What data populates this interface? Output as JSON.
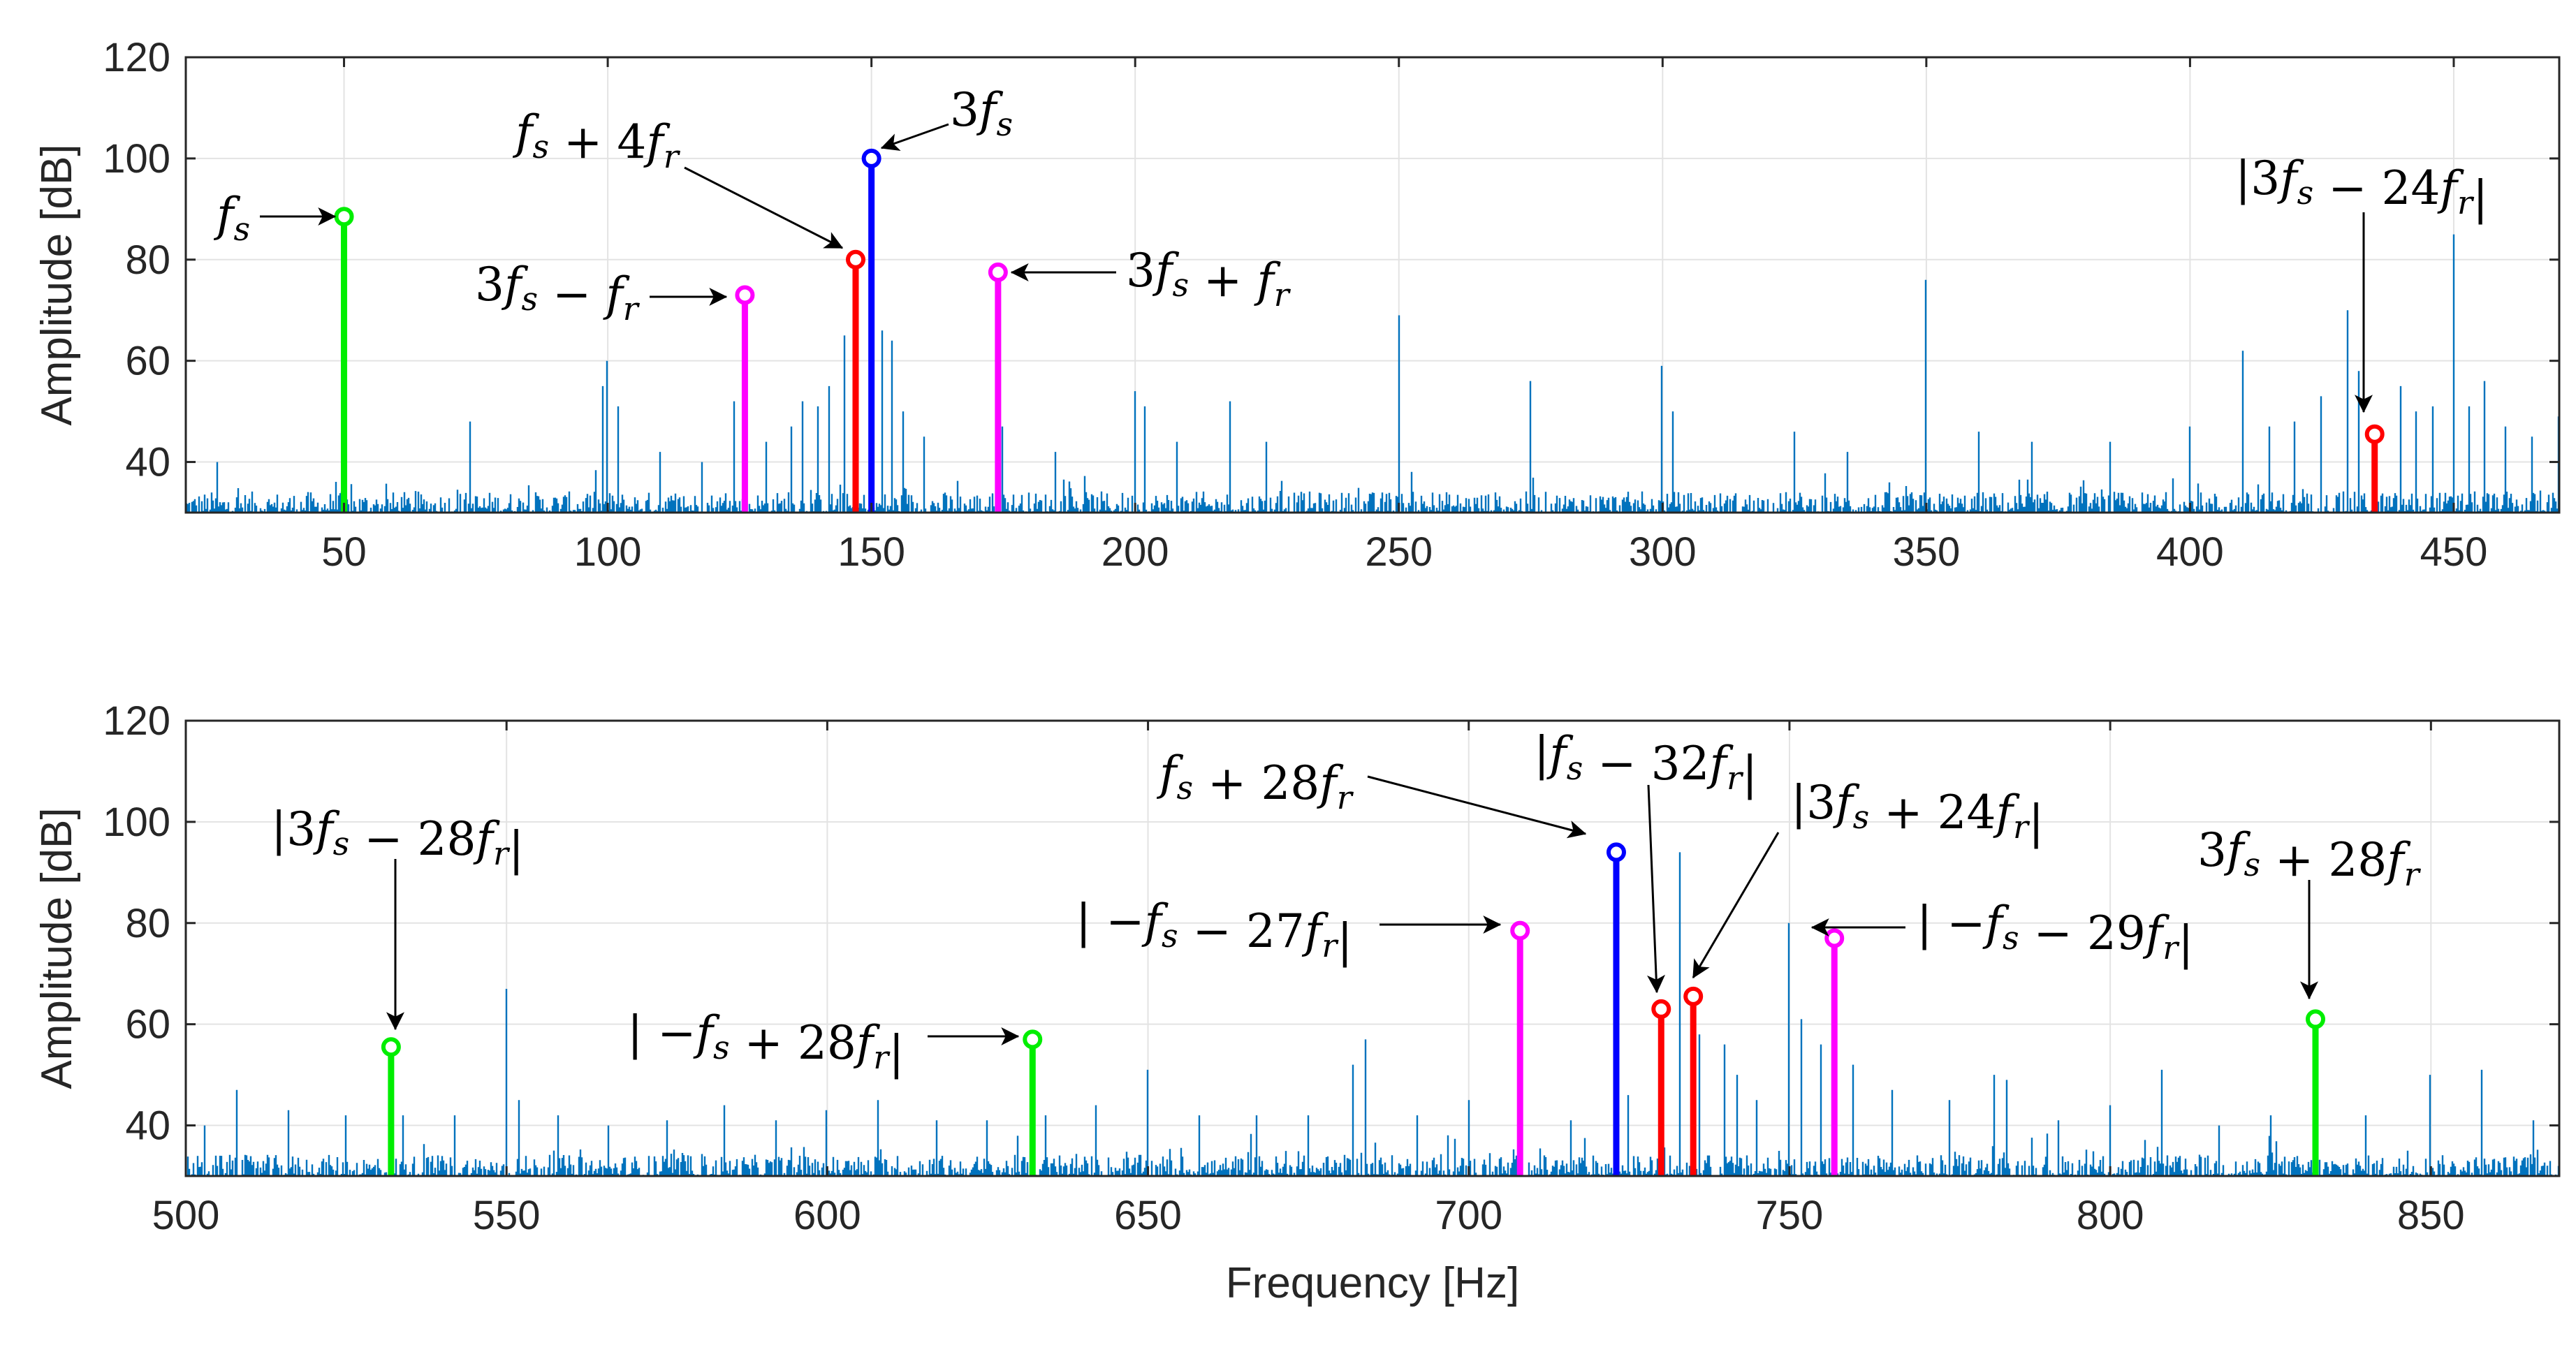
{
  "chart_data": [
    {
      "type": "line",
      "panel": "top",
      "title": "",
      "xlabel": "",
      "ylabel": "Amplitude [dB]",
      "xlim": [
        20,
        470
      ],
      "ylim": [
        30,
        120
      ],
      "grid": true,
      "xticks": [
        50,
        100,
        150,
        200,
        250,
        300,
        350,
        400,
        450
      ],
      "yticks": [
        40,
        60,
        80,
        100,
        120
      ],
      "line_color": "#0072BD",
      "noise_floor_db": 30,
      "spectrum_peaks": [
        {
          "x": 26,
          "y": 40
        },
        {
          "x": 50,
          "y": 41
        },
        {
          "x": 74,
          "y": 48
        },
        {
          "x": 100,
          "y": 60
        },
        {
          "x": 99,
          "y": 55
        },
        {
          "x": 102,
          "y": 51
        },
        {
          "x": 110,
          "y": 42
        },
        {
          "x": 118,
          "y": 40
        },
        {
          "x": 124,
          "y": 52
        },
        {
          "x": 130,
          "y": 44
        },
        {
          "x": 135,
          "y": 47
        },
        {
          "x": 137,
          "y": 52
        },
        {
          "x": 140,
          "y": 51
        },
        {
          "x": 142,
          "y": 55
        },
        {
          "x": 145,
          "y": 65
        },
        {
          "x": 152,
          "y": 66
        },
        {
          "x": 154,
          "y": 64
        },
        {
          "x": 156,
          "y": 50
        },
        {
          "x": 160,
          "y": 45
        },
        {
          "x": 175,
          "y": 47
        },
        {
          "x": 185,
          "y": 42
        },
        {
          "x": 200,
          "y": 54
        },
        {
          "x": 202,
          "y": 51
        },
        {
          "x": 208,
          "y": 44
        },
        {
          "x": 218,
          "y": 52
        },
        {
          "x": 225,
          "y": 44
        },
        {
          "x": 250,
          "y": 69
        },
        {
          "x": 275,
          "y": 56
        },
        {
          "x": 300,
          "y": 59
        },
        {
          "x": 302,
          "y": 50
        },
        {
          "x": 325,
          "y": 46
        },
        {
          "x": 335,
          "y": 42
        },
        {
          "x": 350,
          "y": 76
        },
        {
          "x": 360,
          "y": 46
        },
        {
          "x": 370,
          "y": 44
        },
        {
          "x": 385,
          "y": 44
        },
        {
          "x": 400,
          "y": 47
        },
        {
          "x": 410,
          "y": 62
        },
        {
          "x": 415,
          "y": 47
        },
        {
          "x": 420,
          "y": 48
        },
        {
          "x": 425,
          "y": 53
        },
        {
          "x": 430,
          "y": 70
        },
        {
          "x": 432,
          "y": 58
        },
        {
          "x": 440,
          "y": 55
        },
        {
          "x": 443,
          "y": 50
        },
        {
          "x": 446,
          "y": 51
        },
        {
          "x": 450,
          "y": 85
        },
        {
          "x": 453,
          "y": 51
        },
        {
          "x": 456,
          "y": 56
        },
        {
          "x": 460,
          "y": 47
        },
        {
          "x": 465,
          "y": 45
        },
        {
          "x": 470,
          "y": 49
        }
      ],
      "markers": [
        {
          "x": 50,
          "y": 88.5,
          "color": "#00EE00",
          "label": "f_s"
        },
        {
          "x": 126,
          "y": 73,
          "color": "#FF00FF",
          "label": "3f_s - f_r"
        },
        {
          "x": 147,
          "y": 80,
          "color": "#FF0000",
          "label": "f_s + 4f_r"
        },
        {
          "x": 150,
          "y": 100,
          "color": "#0000FF",
          "label": "3f_s"
        },
        {
          "x": 174,
          "y": 77.5,
          "color": "#FF00FF",
          "label": "3f_s + f_r"
        },
        {
          "x": 435,
          "y": 45.5,
          "color": "#FF0000",
          "label": "|3f_s - 24f_r|"
        }
      ]
    },
    {
      "type": "line",
      "panel": "bottom",
      "title": "",
      "xlabel": "Frequency [Hz]",
      "ylabel": "Amplitude [dB]",
      "xlim": [
        500,
        870
      ],
      "ylim": [
        30,
        120
      ],
      "grid": true,
      "xticks": [
        500,
        550,
        600,
        650,
        700,
        750,
        800,
        850
      ],
      "yticks": [
        40,
        60,
        80,
        100,
        120
      ],
      "line_color": "#0072BD",
      "noise_floor_db": 30,
      "spectrum_peaks": [
        {
          "x": 503,
          "y": 40
        },
        {
          "x": 508,
          "y": 47
        },
        {
          "x": 516,
          "y": 43
        },
        {
          "x": 525,
          "y": 42
        },
        {
          "x": 534,
          "y": 42
        },
        {
          "x": 542,
          "y": 42
        },
        {
          "x": 550,
          "y": 67
        },
        {
          "x": 552,
          "y": 45
        },
        {
          "x": 558,
          "y": 42
        },
        {
          "x": 566,
          "y": 40
        },
        {
          "x": 575,
          "y": 41
        },
        {
          "x": 584,
          "y": 44
        },
        {
          "x": 592,
          "y": 41
        },
        {
          "x": 600,
          "y": 43
        },
        {
          "x": 608,
          "y": 45
        },
        {
          "x": 617,
          "y": 41
        },
        {
          "x": 625,
          "y": 41
        },
        {
          "x": 634,
          "y": 42
        },
        {
          "x": 642,
          "y": 44
        },
        {
          "x": 650,
          "y": 51
        },
        {
          "x": 658,
          "y": 42
        },
        {
          "x": 667,
          "y": 42
        },
        {
          "x": 675,
          "y": 42
        },
        {
          "x": 682,
          "y": 52
        },
        {
          "x": 684,
          "y": 57
        },
        {
          "x": 692,
          "y": 42
        },
        {
          "x": 700,
          "y": 45
        },
        {
          "x": 716,
          "y": 41
        },
        {
          "x": 725,
          "y": 46
        },
        {
          "x": 730,
          "y": 57
        },
        {
          "x": 733,
          "y": 94
        },
        {
          "x": 736,
          "y": 58
        },
        {
          "x": 740,
          "y": 56
        },
        {
          "x": 742,
          "y": 50
        },
        {
          "x": 745,
          "y": 45
        },
        {
          "x": 750,
          "y": 80
        },
        {
          "x": 752,
          "y": 61
        },
        {
          "x": 755,
          "y": 56
        },
        {
          "x": 760,
          "y": 52
        },
        {
          "x": 766,
          "y": 47
        },
        {
          "x": 775,
          "y": 45
        },
        {
          "x": 782,
          "y": 50
        },
        {
          "x": 784,
          "y": 49
        },
        {
          "x": 792,
          "y": 41
        },
        {
          "x": 800,
          "y": 44
        },
        {
          "x": 808,
          "y": 51
        },
        {
          "x": 817,
          "y": 40
        },
        {
          "x": 825,
          "y": 42
        },
        {
          "x": 840,
          "y": 42
        },
        {
          "x": 850,
          "y": 50
        },
        {
          "x": 858,
          "y": 51
        },
        {
          "x": 866,
          "y": 41
        }
      ],
      "markers": [
        {
          "x": 532,
          "y": 55.5,
          "color": "#00EE00",
          "label": "|3f_s - 28f_r|"
        },
        {
          "x": 632,
          "y": 57,
          "color": "#00EE00",
          "label": "|-f_s + 28f_r|"
        },
        {
          "x": 708,
          "y": 78.5,
          "color": "#FF00FF",
          "label": "|-f_s - 27f_r|"
        },
        {
          "x": 723,
          "y": 94,
          "color": "#0000FF",
          "label": "f_s + 28f_r"
        },
        {
          "x": 730,
          "y": 63,
          "color": "#FF0000",
          "label": "|f_s - 32f_r|"
        },
        {
          "x": 735,
          "y": 65.5,
          "color": "#FF0000",
          "label": "|3f_s + 24f_r|"
        },
        {
          "x": 757,
          "y": 77,
          "color": "#FF00FF",
          "label": "|-f_s - 29f_r|"
        },
        {
          "x": 832,
          "y": 61,
          "color": "#00EE00",
          "label": "3f_s + 28f_r"
        }
      ]
    }
  ]
}
